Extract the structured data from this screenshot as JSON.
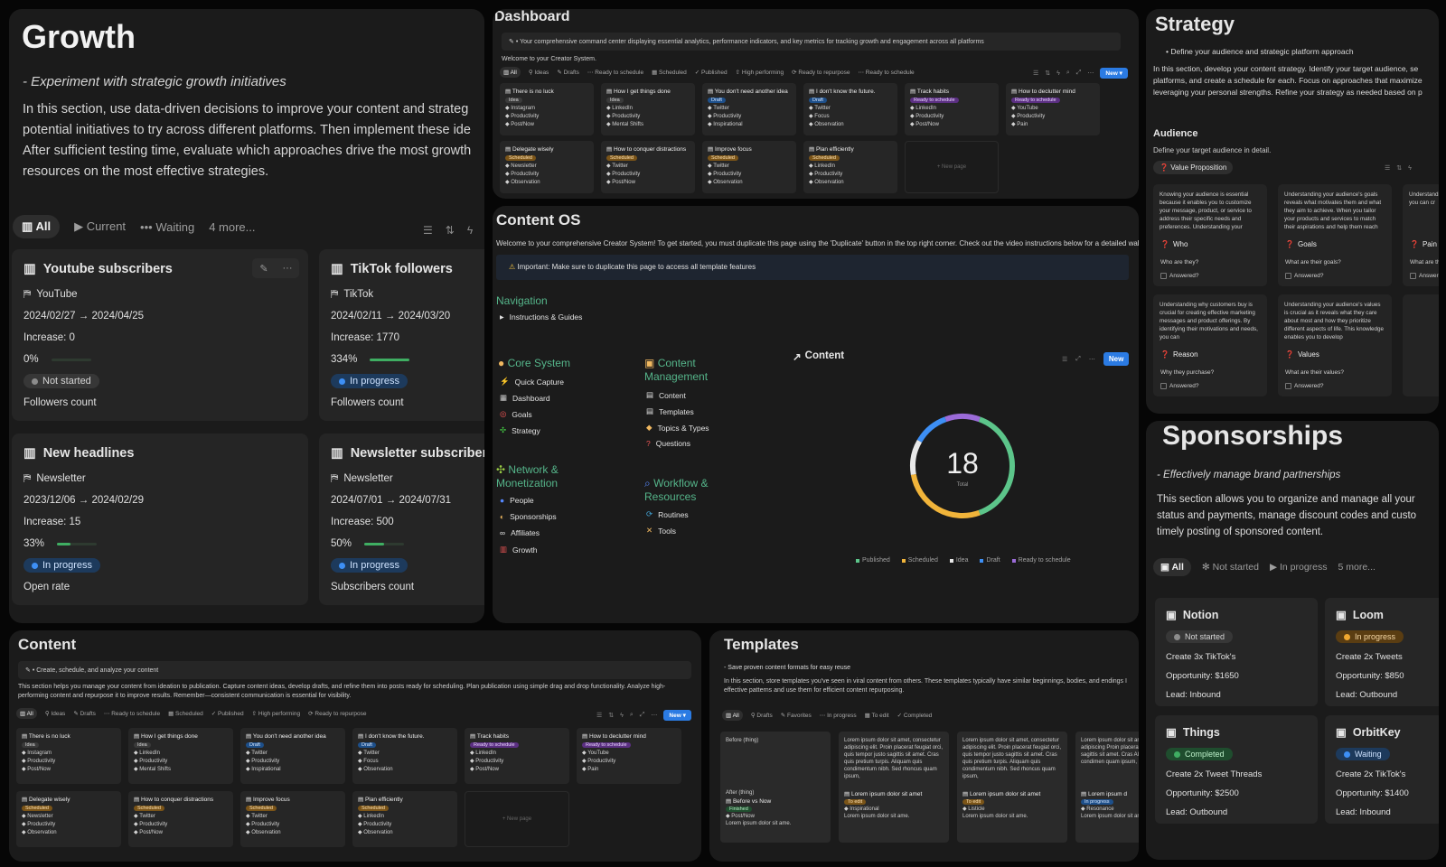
{
  "growth": {
    "title": "Growth",
    "subtitle": "- Experiment with strategic growth initiatives",
    "desc": [
      "In this section, use data-driven decisions to improve your content and strateg",
      "potential initiatives to try across different platforms. Then implement these ide",
      "After sufficient testing time, evaluate which approaches drive the most growth",
      "resources on the most effective strategies."
    ],
    "tabs": [
      "All",
      "Current",
      "Waiting",
      "4 more..."
    ],
    "cards": [
      {
        "title": "Youtube subscribers",
        "platform": "YouTube",
        "dates": "2024/02/27 → 2024/04/25",
        "increase": "Increase: 0",
        "pct_label": "0%",
        "pct": 0,
        "status": "Not started",
        "metric": "Followers count"
      },
      {
        "title": "TikTok followers",
        "platform": "TikTok",
        "dates": "2024/02/11 → 2024/03/20",
        "increase": "Increase: 1770",
        "pct_label": "334%",
        "pct": 100,
        "status": "In progress",
        "metric": "Followers count"
      },
      {
        "title": "New headlines",
        "platform": "Newsletter",
        "dates": "2023/12/06 → 2024/02/29",
        "increase": "Increase: 15",
        "pct_label": "33%",
        "pct": 33,
        "status": "In progress",
        "metric": "Open rate"
      },
      {
        "title": "Newsletter subscriber",
        "platform": "Newsletter",
        "dates": "2024/07/01 → 2024/07/31",
        "increase": "Increase: 500",
        "pct_label": "50%",
        "pct": 50,
        "status": "In progress",
        "metric": "Subscribers count"
      }
    ]
  },
  "dashboard": {
    "title": "Dashboard",
    "callout": "Your comprehensive command center displaying essential analytics, performance indicators, and key metrics for tracking growth and engagement across all platforms",
    "welcome": "Welcome to your Creator System.",
    "tabs": [
      "All",
      "Ideas",
      "Drafts",
      "Ready to schedule",
      "Scheduled",
      "Published",
      "High performing",
      "Ready to repurpose",
      "Ready to schedule"
    ],
    "new_label": "New"
  },
  "board_cards": [
    {
      "title": "There is no luck",
      "tag": "Idea",
      "lines": [
        "Instagram",
        "Productivity",
        "Post/Now"
      ]
    },
    {
      "title": "How I get things done",
      "tag": "Idea",
      "lines": [
        "LinkedIn",
        "Productivity",
        "Mental Shifts"
      ]
    },
    {
      "title": "You don't need another idea",
      "tag": "Draft",
      "lines": [
        "Twitter",
        "Productivity",
        "Inspirational"
      ]
    },
    {
      "title": "I don't know the future.",
      "tag": "Draft",
      "lines": [
        "Twitter",
        "Focus",
        "Observation"
      ]
    },
    {
      "title": "Track habits",
      "tag": "Ready to schedule",
      "lines": [
        "LinkedIn",
        "Productivity",
        "Post/Now"
      ]
    },
    {
      "title": "How to declutter mind",
      "tag": "Ready to schedule",
      "lines": [
        "YouTube",
        "Productivity",
        "Pain"
      ]
    },
    {
      "title": "Delegate wisely",
      "tag": "Scheduled",
      "lines": [
        "Newsletter",
        "Productivity",
        "Observation"
      ]
    },
    {
      "title": "How to conquer distractions",
      "tag": "Scheduled",
      "lines": [
        "Twitter",
        "Productivity",
        "Post/Now"
      ]
    },
    {
      "title": "Improve focus",
      "tag": "Scheduled",
      "lines": [
        "Twitter",
        "Productivity",
        "Observation"
      ]
    },
    {
      "title": "Plan efficiently",
      "tag": "Scheduled",
      "lines": [
        "LinkedIn",
        "Productivity",
        "Observation"
      ]
    }
  ],
  "new_page": "+ New page",
  "content_os": {
    "title": "Content OS",
    "welcome": "Welcome to your comprehensive Creator System! To get started, you must duplicate this page using the 'Duplicate' button in the top right corner. Check out the video instructions below for a detailed wal",
    "important": "Important: Make sure to duplicate this page to access all template features",
    "navigation": "Navigation",
    "instructions": "Instructions & Guides",
    "core_title": "Core System",
    "core_items": [
      "Quick Capture",
      "Dashboard",
      "Goals",
      "Strategy"
    ],
    "cm_title_1": "Content",
    "cm_title_2": "Management",
    "cm_items": [
      "Content",
      "Templates",
      "Topics & Types",
      "Questions"
    ],
    "net_title_1": "Network &",
    "net_title_2": "Monetization",
    "net_items": [
      "People",
      "Sponsorships",
      "Affiliates",
      "Growth"
    ],
    "wf_title_1": "Workflow &",
    "wf_title_2": "Resources",
    "wf_items": [
      "Routines",
      "Tools"
    ],
    "chart_title": "Content",
    "new_label": "New"
  },
  "chart_data": {
    "type": "pie",
    "total_label": "Total",
    "total": 18,
    "categories": [
      "Published",
      "Scheduled",
      "Idea",
      "Draft",
      "Ready to schedule"
    ],
    "values": [
      7,
      5,
      2,
      2,
      2
    ],
    "colors": [
      "#5cc58a",
      "#f1b43a",
      "#e8e8e8",
      "#3d8ff5",
      "#9b6bd8"
    ]
  },
  "strategy": {
    "title": "Strategy",
    "bullet": "Define your audience and strategic platform approach",
    "desc": [
      "In this section, develop your content strategy. Identify your target audience, se",
      "platforms, and create a schedule for each. Focus on approaches that maximize",
      "leveraging your personal strengths. Refine your strategy as needed based on p"
    ],
    "audience": "Audience",
    "audience_desc": "Define your target audience in detail.",
    "view": "Value Proposition",
    "answered": "Answered?",
    "cards": [
      {
        "text": "Knowing your audience is essential because it enables you to customize your message, product, or service to address their specific needs and preferences. Understanding your",
        "title": "Who",
        "q": "Who are they?"
      },
      {
        "text": "Understanding your audience's goals reveals what motivates them and what they aim to achieve. When you tailor your products and services to match their aspirations and help them reach",
        "title": "Goals",
        "q": "What are their goals?"
      },
      {
        "text": "Understanding points is c When you you can cr",
        "title": "Pain",
        "q": "What are th"
      },
      {
        "text": "Understanding why customers buy is crucial for creating effective marketing messages and product offerings. By identifying their motivations and needs, you can",
        "title": "Reason",
        "q": "Why they purchase?"
      },
      {
        "text": "Understanding your audience's values is crucial as it reveals what they care about most and how they prioritize different aspects of life. This knowledge enables you to develop",
        "title": "Values",
        "q": "What are their values?"
      }
    ]
  },
  "sponsorships": {
    "title": "Sponsorships",
    "subtitle": "- Effectively manage brand partnerships",
    "desc": [
      "This section allows you to organize and manage all your",
      "status and payments, manage discount codes and custo",
      "timely posting of sponsored content."
    ],
    "tabs": [
      "All",
      "Not started",
      "In progress",
      "5 more..."
    ],
    "cards": [
      {
        "name": "Notion",
        "status": "Not started",
        "task": "Create 3x TikTok's",
        "opp": "Opportunity: $1650",
        "lead": "Lead: Inbound"
      },
      {
        "name": "Loom",
        "status": "In progress",
        "task": "Create 2x Tweets",
        "opp": "Opportunity: $850",
        "lead": "Lead: Outbound"
      },
      {
        "name": "Things",
        "status": "Completed",
        "task": "Create 2x Tweet Threads",
        "opp": "Opportunity: $2500",
        "lead": "Lead: Outbound"
      },
      {
        "name": "OrbitKey",
        "status": "Waiting",
        "task": "Create 2x TikTok's",
        "opp": "Opportunity: $1400",
        "lead": "Lead: Inbound"
      }
    ]
  },
  "content": {
    "title": "Content",
    "callout": "Create, schedule, and analyze your content",
    "desc": [
      "This section helps you manage your content from ideation to publication. Capture content ideas, develop drafts, and refine them into posts ready for scheduling. Plan publication using simple drag and drop functionality. Analyze high-",
      "performing content and repurpose it to improve results. Remember—consistent communication is essential for visibility."
    ],
    "tabs": [
      "All",
      "Ideas",
      "Drafts",
      "Ready to schedule",
      "Scheduled",
      "Published",
      "High performing",
      "Ready to repurpose"
    ],
    "new_label": "New"
  },
  "templates": {
    "title": "Templates",
    "subtitle": "- Save proven content formats for easy reuse",
    "desc": [
      "In this section, store templates you've seen in viral content from others. These templates typically have similar beginnings, bodies, and endings I",
      "effective patterns and use them for efficient content repurposing."
    ],
    "tabs": [
      "All",
      "Drafts",
      "Favorites",
      "In progress",
      "To edit",
      "Completed"
    ],
    "cards": [
      {
        "body": "Before (thing)",
        "after": "After (thing)",
        "title": "Before vs Now",
        "tag": "Finished",
        "cat": "Post/Now",
        "foot": "Lorem ipsum dolor sit ame."
      },
      {
        "body": "Lorem ipsum dolor sit amet, consectetur adipiscing elit. Proin placerat feugiat orci, quis tempor justo sagittis sit amet. Cras quis pretium turpis. Aliquam quis condimentum nibh. Sed rhoncus quam ipsum,",
        "title": "Lorem ipsum dolor sit amet",
        "tag": "To edit",
        "cat": "Inspirational",
        "foot": "Lorem ipsum dolor sit ame."
      },
      {
        "body": "Lorem ipsum dolor sit amet, consectetur adipiscing elit. Proin placerat feugiat orci, quis tempor justo sagittis sit amet. Cras quis pretium turpis. Aliquam quis condimentum nibh. Sed rhoncus quam ipsum,",
        "title": "Lorem ipsum dolor sit amet",
        "tag": "To edit",
        "cat": "Listicle",
        "foot": "Lorem ipsum dolor sit ame."
      },
      {
        "body": "Lorem ipsum dolor sit am consectetur adipiscing Proin placerat feugiat or sagittis sit amet. Cras Aliquam quis condimen quam ipsum,",
        "title": "Lorem ipsum d",
        "tag": "In progress",
        "cat": "Resonance",
        "foot": "Lorem ipsum dolor sit am"
      }
    ]
  }
}
